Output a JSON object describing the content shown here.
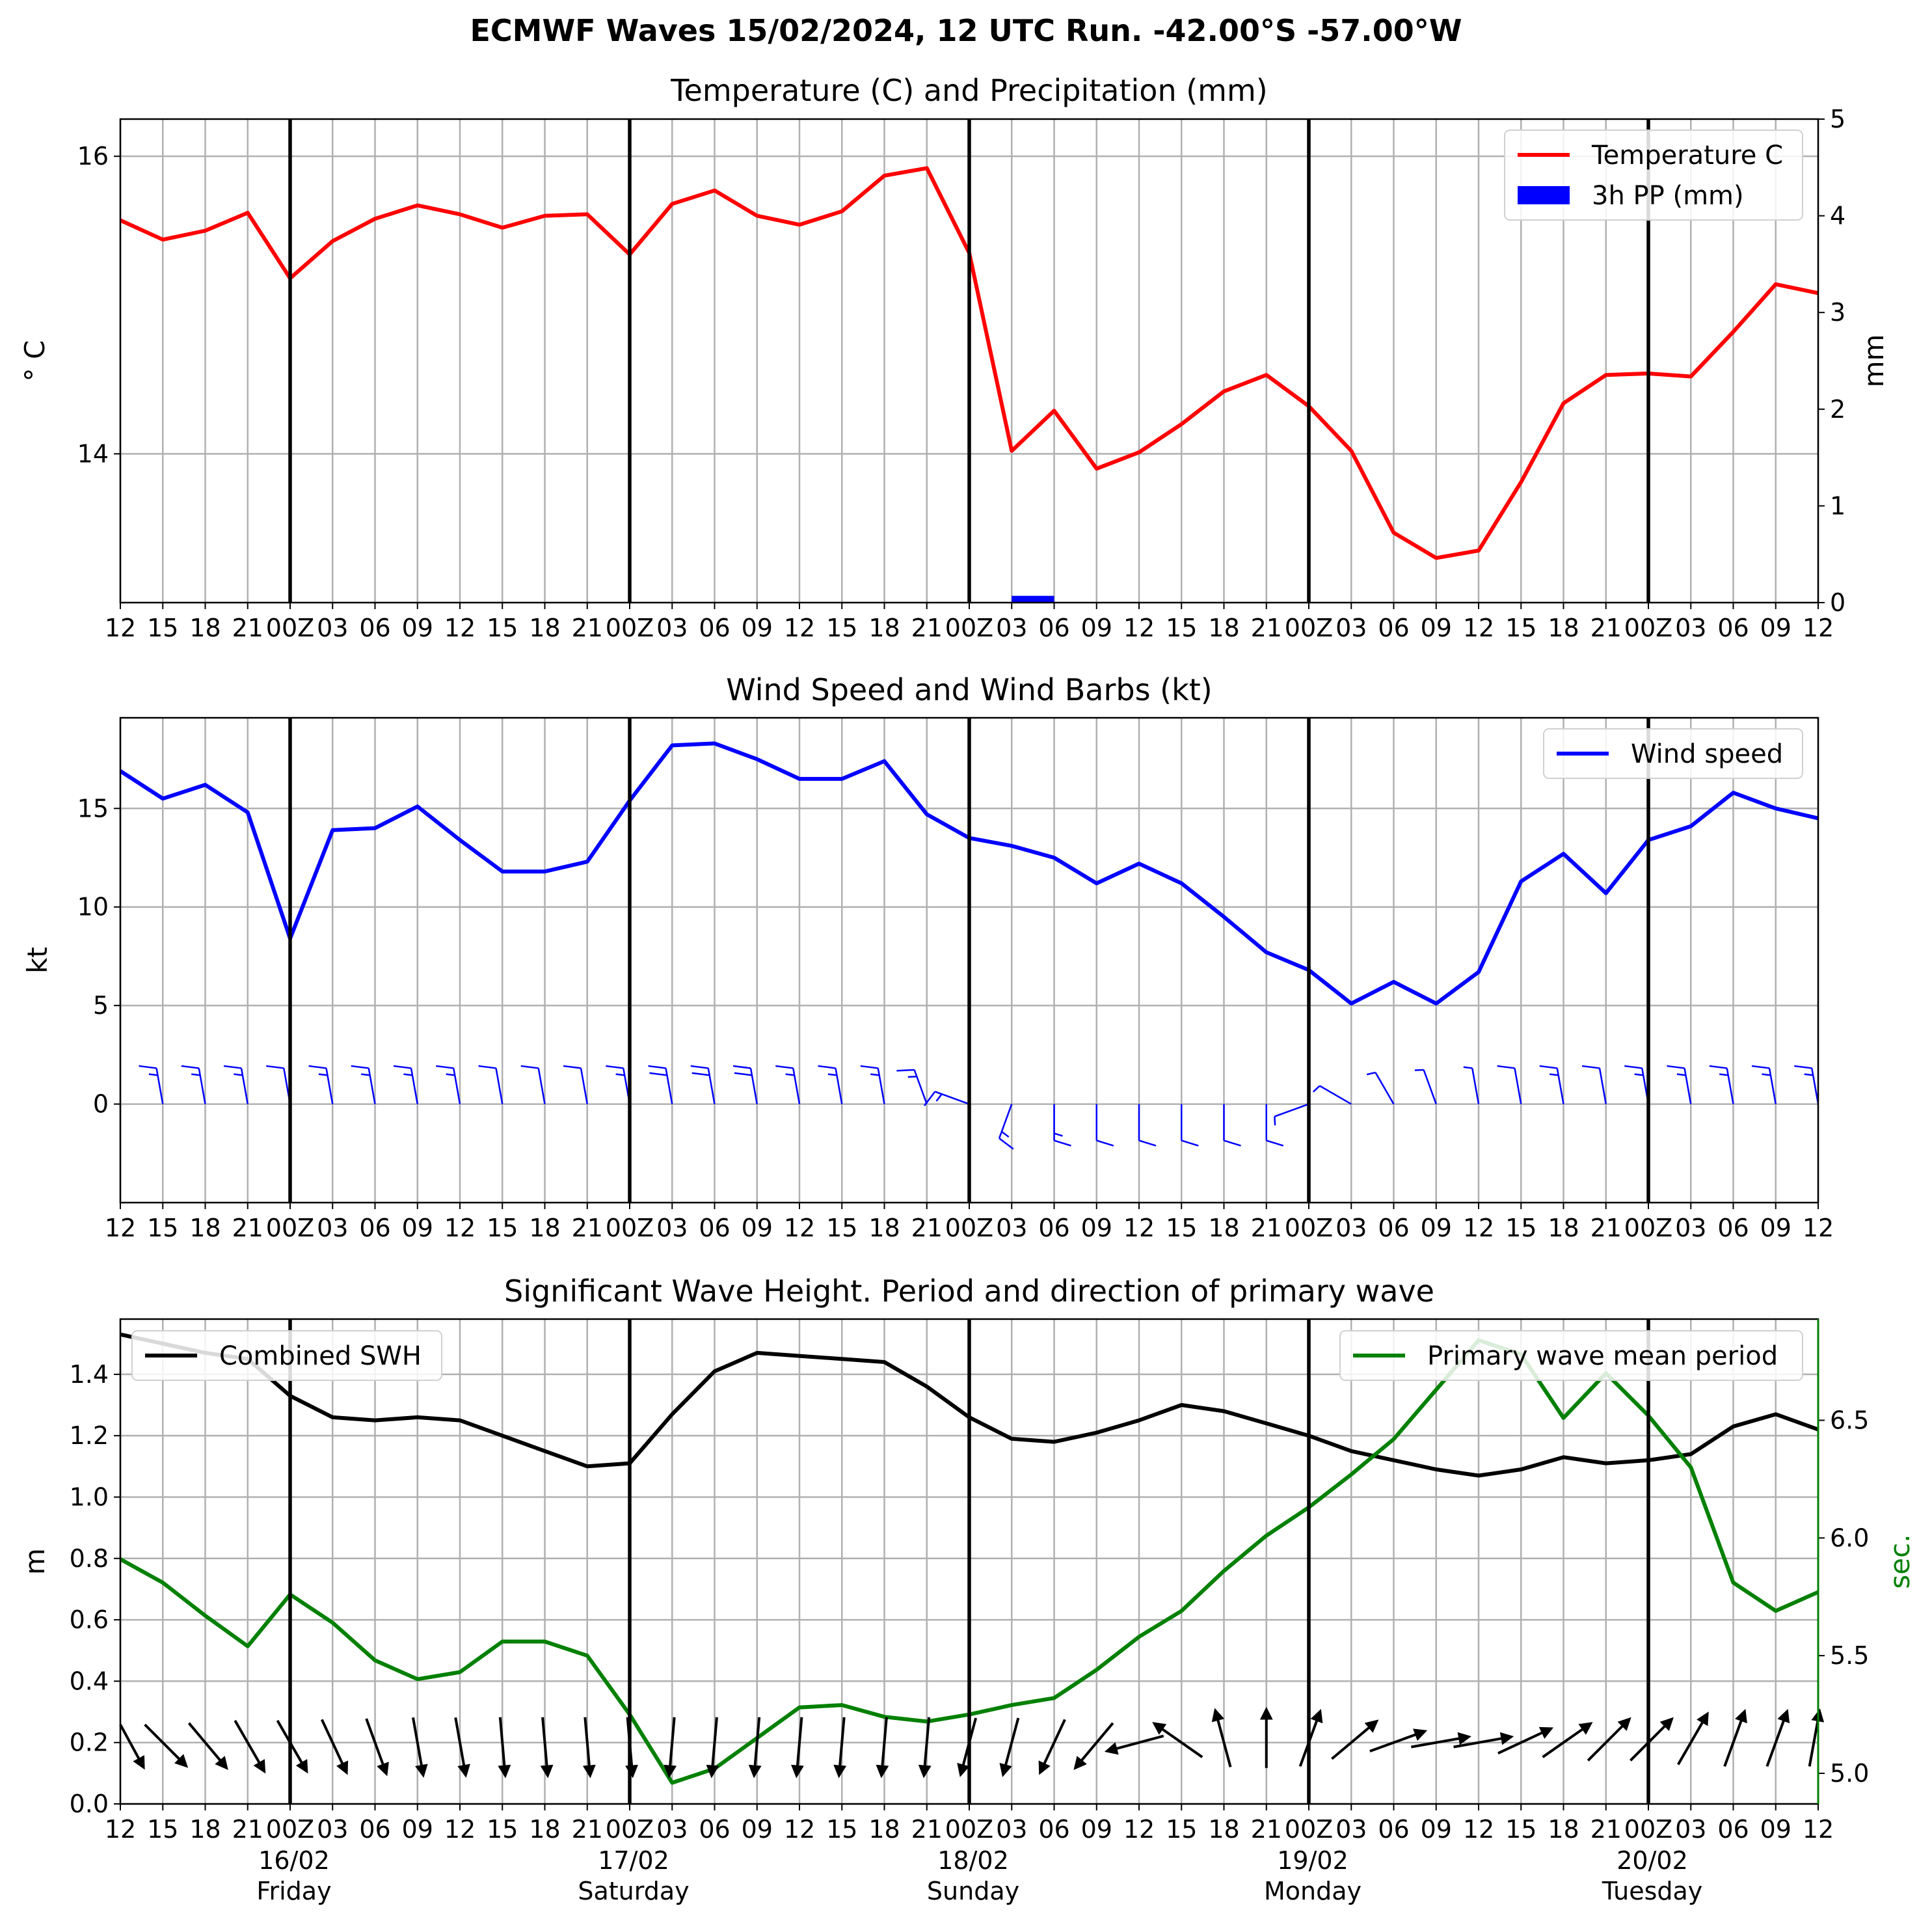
{
  "title": "ECMWF Waves 15/02/2024, 12 UTC Run. -42.00°S -57.00°W",
  "x_tick_labels": [
    "12",
    "15",
    "18",
    "21",
    "00Z",
    "03",
    "06",
    "09",
    "12",
    "15",
    "18",
    "21",
    "00Z",
    "03",
    "06",
    "09",
    "12",
    "15",
    "18",
    "21",
    "00Z",
    "03",
    "06",
    "09",
    "12",
    "15",
    "18",
    "21",
    "00Z",
    "03",
    "06",
    "09",
    "12",
    "15",
    "18",
    "21",
    "00Z",
    "03",
    "06",
    "09",
    "12"
  ],
  "day_labels": [
    {
      "date": "16/02",
      "day": "Friday"
    },
    {
      "date": "17/02",
      "day": "Saturday"
    },
    {
      "date": "18/02",
      "day": "Sunday"
    },
    {
      "date": "19/02",
      "day": "Monday"
    },
    {
      "date": "20/02",
      "day": "Tuesday"
    }
  ],
  "colors": {
    "temperature": "#ff0000",
    "precip": "#0000ff",
    "wind": "#0000ff",
    "swh": "#000000",
    "period": "#008000",
    "grid": "#b0b0b0"
  },
  "chart_data": [
    {
      "type": "line",
      "title": "Temperature (C) and Precipitation (mm)",
      "ylabel": "$^\\circ$C",
      "ylabel_display": "° C",
      "y2label": "mm",
      "ylim": [
        13.0,
        16.25
      ],
      "yticks": [
        "14",
        "16"
      ],
      "y2lim": [
        0,
        5
      ],
      "y2ticks": [
        "0",
        "1",
        "2",
        "3",
        "4",
        "5"
      ],
      "legend_position": "upper right",
      "series": [
        {
          "name": "Temperature C",
          "axis": "left",
          "values": [
            15.57,
            15.44,
            15.5,
            15.62,
            15.18,
            15.43,
            15.58,
            15.67,
            15.61,
            15.52,
            15.6,
            15.61,
            15.34,
            15.68,
            15.77,
            15.6,
            15.54,
            15.63,
            15.87,
            15.92,
            15.35,
            14.02,
            14.29,
            13.9,
            14.01,
            14.2,
            14.42,
            14.53,
            14.32,
            14.02,
            13.47,
            13.3,
            13.35,
            13.81,
            14.34,
            14.53,
            14.54,
            14.52,
            14.82,
            15.14,
            15.08
          ]
        },
        {
          "name": "3h PP (mm)",
          "axis": "right",
          "kind": "bar",
          "values": [
            0,
            0,
            0,
            0,
            0,
            0,
            0,
            0,
            0,
            0,
            0,
            0,
            0,
            0,
            0,
            0,
            0,
            0,
            0,
            0,
            0,
            0.07,
            0,
            0,
            0,
            0,
            0,
            0,
            0,
            0,
            0,
            0,
            0,
            0,
            0,
            0,
            0,
            0,
            0,
            0,
            0
          ]
        }
      ]
    },
    {
      "type": "line",
      "title": "Wind Speed and Wind Barbs (kt)",
      "ylabel": "kt",
      "ylim": [
        -5,
        19.6
      ],
      "yticks": [
        "0",
        "5",
        "10",
        "15"
      ],
      "legend_position": "upper right",
      "series": [
        {
          "name": "Wind speed",
          "values": [
            16.9,
            15.5,
            16.2,
            14.8,
            8.4,
            13.9,
            14.0,
            15.1,
            13.4,
            11.8,
            11.8,
            12.3,
            15.4,
            18.2,
            18.3,
            17.5,
            16.5,
            16.5,
            17.4,
            14.7,
            13.5,
            13.1,
            12.5,
            11.2,
            12.2,
            11.2,
            9.5,
            7.7,
            6.8,
            5.1,
            6.2,
            5.1,
            6.7,
            11.3,
            12.7,
            10.7,
            13.4,
            14.1,
            15.8,
            15.0,
            14.5
          ]
        }
      ],
      "wind_barbs_dir_deg": [
        350,
        350,
        350,
        350,
        350,
        350,
        350,
        350,
        350,
        350,
        350,
        350,
        350,
        350,
        350,
        350,
        350,
        350,
        350,
        340,
        290,
        200,
        180,
        180,
        180,
        180,
        180,
        180,
        250,
        300,
        330,
        340,
        350,
        350,
        350,
        350,
        350,
        350,
        350,
        350,
        350
      ]
    },
    {
      "type": "line",
      "title": "Significant Wave Height. Period and direction of primary wave",
      "ylabel": "m",
      "y2label": "sec.",
      "ylim": [
        0.0,
        1.58
      ],
      "yticks": [
        "0.0",
        "0.2",
        "0.4",
        "0.6",
        "0.8",
        "1.0",
        "1.2",
        "1.4"
      ],
      "y2lim": [
        4.87,
        6.93
      ],
      "y2ticks": [
        "5.0",
        "5.5",
        "6.0",
        "6.5"
      ],
      "series": [
        {
          "name": "Combined SWH",
          "axis": "left",
          "legend_position": "upper left",
          "values": [
            1.53,
            1.5,
            1.47,
            1.45,
            1.33,
            1.26,
            1.25,
            1.26,
            1.25,
            1.2,
            1.15,
            1.1,
            1.11,
            1.27,
            1.41,
            1.47,
            1.46,
            1.45,
            1.44,
            1.36,
            1.26,
            1.19,
            1.18,
            1.21,
            1.25,
            1.3,
            1.28,
            1.24,
            1.2,
            1.15,
            1.12,
            1.09,
            1.07,
            1.09,
            1.13,
            1.11,
            1.12,
            1.14,
            1.23,
            1.27,
            1.22
          ]
        },
        {
          "name": "Primary wave mean period",
          "axis": "right",
          "legend_position": "upper right",
          "values": [
            5.91,
            5.81,
            5.67,
            5.54,
            5.76,
            5.64,
            5.48,
            5.4,
            5.43,
            5.56,
            5.56,
            5.5,
            5.25,
            4.96,
            5.02,
            5.15,
            5.28,
            5.29,
            5.24,
            5.22,
            5.25,
            5.29,
            5.32,
            5.44,
            5.58,
            5.69,
            5.86,
            6.01,
            6.13,
            6.27,
            6.42,
            6.63,
            6.84,
            6.78,
            6.51,
            6.7,
            6.52,
            6.3,
            5.81,
            5.69,
            5.77
          ]
        }
      ],
      "primary_wave_dir_deg": [
        315,
        315,
        320,
        330,
        330,
        335,
        340,
        350,
        350,
        355,
        355,
        355,
        355,
        5,
        5,
        5,
        5,
        5,
        5,
        5,
        15,
        15,
        25,
        40,
        75,
        125,
        165,
        180,
        200,
        230,
        250,
        260,
        260,
        245,
        235,
        225,
        225,
        210,
        200,
        200,
        200
      ]
    }
  ]
}
